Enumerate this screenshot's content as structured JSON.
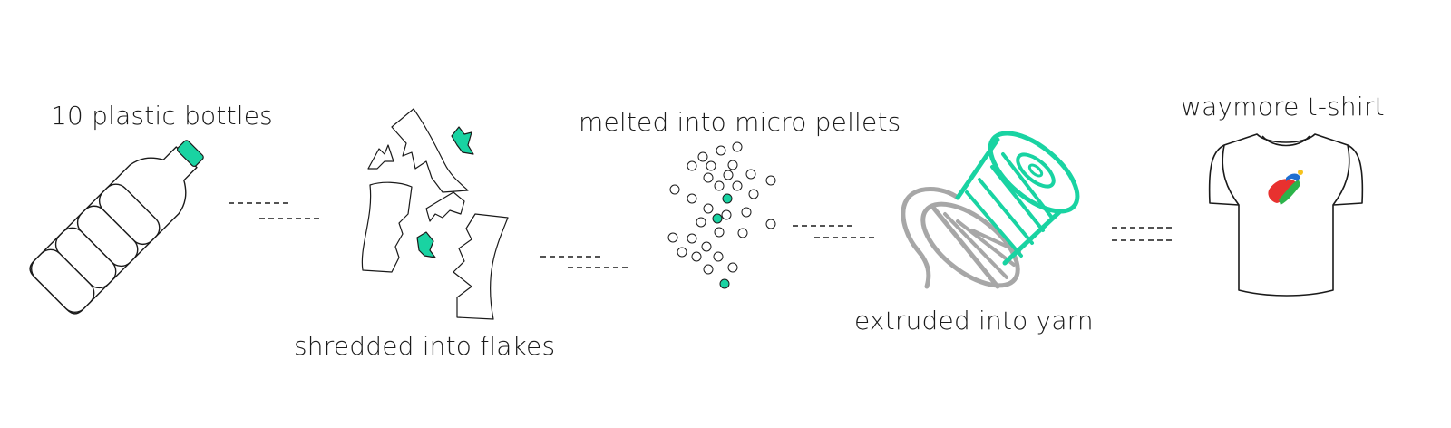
{
  "steps": [
    {
      "id": "bottles",
      "label": "10 plastic bottles",
      "icon": "plastic-bottle-icon"
    },
    {
      "id": "flakes",
      "label": "shredded into flakes",
      "icon": "plastic-flakes-icon"
    },
    {
      "id": "pellets",
      "label": "melted into micro pellets",
      "icon": "micro-pellets-icon"
    },
    {
      "id": "yarn",
      "label": "extruded into yarn",
      "icon": "yarn-spool-icon"
    },
    {
      "id": "tshirt",
      "label": "waymore t-shirt",
      "icon": "t-shirt-icon"
    }
  ],
  "colors": {
    "accent": "#19d3a2",
    "outline": "#1a1a1a",
    "yarn_grey": "#a7a7a7",
    "logo_red": "#e8312f",
    "logo_green": "#2cb34a",
    "logo_blue": "#1f6fd1",
    "logo_yellow": "#f6c21c"
  }
}
